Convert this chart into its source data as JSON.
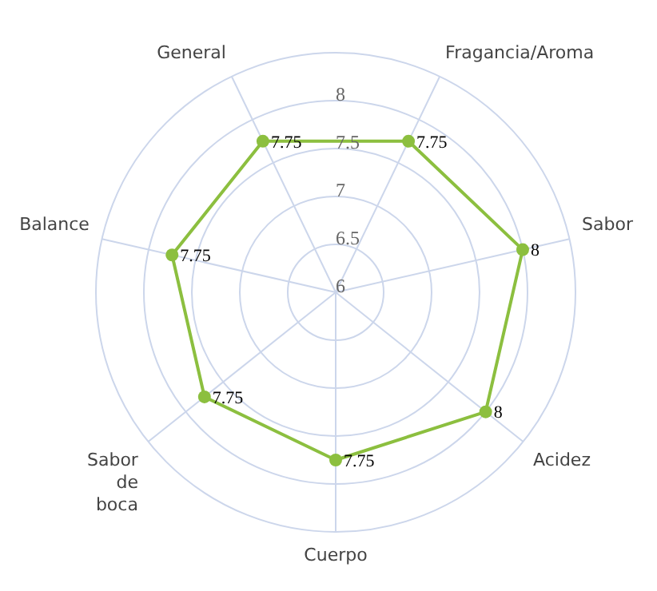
{
  "chart_data": {
    "type": "radar",
    "categories": [
      "Fragancia/Aroma",
      "Sabor",
      "Acidez",
      "Cuerpo",
      "Sabor de boca",
      "Balance",
      "General"
    ],
    "series": [
      {
        "color": "#8cbf3f",
        "values": [
          7.75,
          8,
          8,
          7.75,
          7.75,
          7.75,
          7.75
        ]
      }
    ],
    "ylim": [
      6,
      8.5
    ],
    "yticks": [
      6,
      6.5,
      7,
      7.5,
      8
    ],
    "grid": true,
    "data_labels": true,
    "marker": "circle",
    "legend": false
  }
}
